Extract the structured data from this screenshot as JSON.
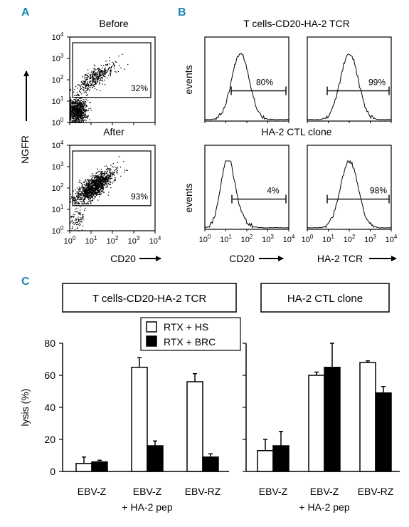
{
  "panels": {
    "A": {
      "letter": "A",
      "ylabel": "NGFR",
      "xlabel": "CD20",
      "plots": [
        {
          "title": "Before",
          "gate_percent": "32%"
        },
        {
          "title": "After",
          "gate_percent": "93%"
        }
      ]
    },
    "B": {
      "letter": "B",
      "row_titles": [
        "T cells-CD20-HA-2 TCR",
        "HA-2 CTL clone"
      ],
      "ylabel": "events",
      "xlabels": [
        "CD20",
        "HA-2 TCR"
      ],
      "percents": [
        [
          "80%",
          "99%"
        ],
        [
          "4%",
          "98%"
        ]
      ]
    },
    "C": {
      "letter": "C",
      "box_titles": [
        "T cells-CD20-HA-2 TCR",
        "HA-2 CTL clone"
      ],
      "legend": [
        {
          "label": "RTX + HS",
          "fill": "#ffffff"
        },
        {
          "label": "RTX + BRC",
          "fill": "#000000"
        }
      ]
    }
  },
  "ticks": {
    "log_labels": [
      "0",
      "1",
      "2",
      "3",
      "4"
    ]
  },
  "colors": {
    "letters": "#1a87b3",
    "ink": "#000000"
  },
  "chart_data": [
    {
      "type": "scatter",
      "panel": "A",
      "title": "Before",
      "xlabel": "CD20",
      "ylabel": "NGFR",
      "x_scale": "log",
      "y_scale": "log",
      "xlim": [
        1,
        10000
      ],
      "ylim": [
        1,
        10000
      ],
      "gate_percent": 32
    },
    {
      "type": "scatter",
      "panel": "A",
      "title": "After",
      "xlabel": "CD20",
      "ylabel": "NGFR",
      "x_scale": "log",
      "y_scale": "log",
      "xlim": [
        1,
        10000
      ],
      "ylim": [
        1,
        10000
      ],
      "gate_percent": 93
    },
    {
      "type": "area",
      "panel": "B",
      "row": "T cells-CD20-HA-2 TCR",
      "xlabel": "CD20",
      "ylabel": "events",
      "x_scale": "log",
      "xlim": [
        1,
        10000
      ],
      "gate_percent": 80,
      "peak_x": 50
    },
    {
      "type": "area",
      "panel": "B",
      "row": "T cells-CD20-HA-2 TCR",
      "xlabel": "HA-2 TCR",
      "ylabel": "events",
      "x_scale": "log",
      "xlim": [
        1,
        10000
      ],
      "gate_percent": 99,
      "peak_x": 100
    },
    {
      "type": "area",
      "panel": "B",
      "row": "HA-2 CTL clone",
      "xlabel": "CD20",
      "ylabel": "events",
      "x_scale": "log",
      "xlim": [
        1,
        10000
      ],
      "gate_percent": 4,
      "peak_x": 12
    },
    {
      "type": "area",
      "panel": "B",
      "row": "HA-2 CTL clone",
      "xlabel": "HA-2 TCR",
      "ylabel": "events",
      "x_scale": "log",
      "xlim": [
        1,
        10000
      ],
      "gate_percent": 98,
      "peak_x": 100
    },
    {
      "type": "bar",
      "panel": "C",
      "title": "T cells-CD20-HA-2 TCR",
      "ylabel": "lysis (%)",
      "ylim": [
        0,
        80
      ],
      "yticks": [
        0,
        20,
        40,
        60,
        80
      ],
      "categories": [
        [
          "EBV-Z"
        ],
        [
          "EBV-Z",
          "+ HA-2 pep"
        ],
        [
          "EBV-RZ"
        ]
      ],
      "series": [
        {
          "name": "RTX + HS",
          "values": [
            5,
            65,
            56
          ],
          "errors": [
            4,
            6,
            5
          ]
        },
        {
          "name": "RTX + BRC",
          "values": [
            6,
            16,
            9
          ],
          "errors": [
            1,
            3,
            2
          ]
        }
      ]
    },
    {
      "type": "bar",
      "panel": "C",
      "title": "HA-2 CTL clone",
      "ylabel": "",
      "ylim": [
        0,
        80
      ],
      "yticks": [
        0,
        20,
        40,
        60,
        80
      ],
      "categories": [
        [
          "EBV-Z"
        ],
        [
          "EBV-Z",
          "+ HA-2 pep"
        ],
        [
          "EBV-RZ"
        ]
      ],
      "series": [
        {
          "name": "RTX + HS",
          "values": [
            13,
            60,
            68
          ],
          "errors": [
            7,
            2,
            1
          ]
        },
        {
          "name": "RTX + BRC",
          "values": [
            16,
            65,
            49
          ],
          "errors": [
            9,
            15,
            4
          ]
        }
      ]
    }
  ]
}
